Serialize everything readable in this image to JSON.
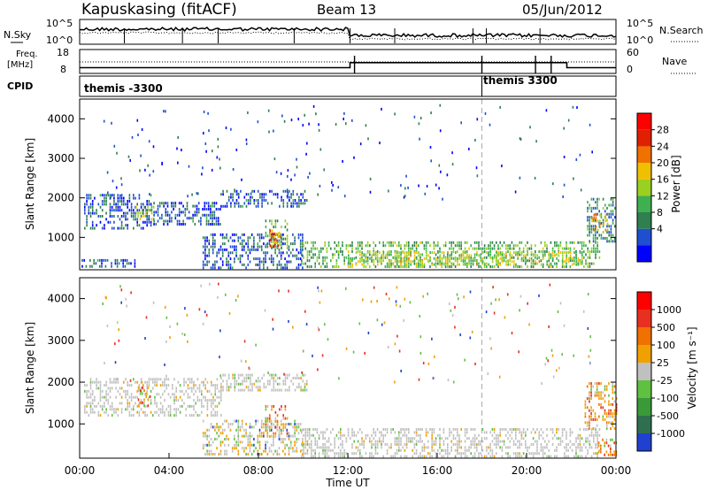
{
  "header": {
    "title": "Kapuskasing (fitACF)",
    "beam": "Beam 13",
    "date": "05/Jun/2012"
  },
  "top_panels": {
    "nsky_label": "N.Sky",
    "nsearch_label": "N.Search",
    "noise_ticks": [
      "10^5",
      "10^0"
    ],
    "freq_label_1": "Freq.",
    "freq_label_2": "[MHz]",
    "freq_ticks": [
      "18",
      "8"
    ],
    "nave_label": "Nave",
    "nave_ticks": [
      "60",
      "0"
    ],
    "cpid_label": "CPID",
    "cpid_segments": [
      {
        "label": "themis -3300",
        "start_hour": 0,
        "end_hour": 18
      },
      {
        "label": "themis 3300",
        "start_hour": 18,
        "end_hour": 24
      }
    ],
    "freq_series": [
      {
        "start_hour": 0,
        "end_hour": 12.1,
        "mhz": 10.2
      },
      {
        "start_hour": 12.1,
        "end_hour": 21.8,
        "mhz": 12.5
      },
      {
        "start_hour": 21.8,
        "end_hour": 24,
        "mhz": 10.2
      }
    ]
  },
  "chart_data": [
    {
      "type": "heatmap",
      "name": "power",
      "ylabel": "Slant Range [km]",
      "ylim": [
        180,
        4500
      ],
      "yticks": [
        "4000",
        "3000",
        "2000",
        "1000"
      ],
      "xlim_hours": [
        0,
        24
      ],
      "colorbar_label": "Power [dB]",
      "colorbar_ticks": [
        "28",
        "24",
        "20",
        "16",
        "12",
        "8",
        "4"
      ],
      "colorbar_colors": [
        "#0000ff",
        "#1f4fd0",
        "#2f7f4f",
        "#3fb050",
        "#9ad020",
        "#f0c000",
        "#f07000",
        "#e02000",
        "#ff0000"
      ],
      "echo_regions": [
        {
          "h0": 0.2,
          "h1": 3.2,
          "r0": 1200,
          "r1": 2100,
          "level": 1
        },
        {
          "h0": 2.5,
          "h1": 3.3,
          "r0": 1450,
          "r1": 1800,
          "level": 4
        },
        {
          "h0": 3.3,
          "h1": 6.3,
          "r0": 1300,
          "r1": 1900,
          "level": 1
        },
        {
          "h0": 6.3,
          "h1": 10.2,
          "r0": 1800,
          "r1": 2200,
          "level": 1
        },
        {
          "h0": 5.5,
          "h1": 10.0,
          "r0": 250,
          "r1": 1100,
          "level": 1
        },
        {
          "h0": 8.3,
          "h1": 9.3,
          "r0": 700,
          "r1": 1450,
          "level": 3
        },
        {
          "h0": 8.5,
          "h1": 9.0,
          "r0": 800,
          "r1": 1200,
          "level": 6
        },
        {
          "h0": 9.9,
          "h1": 23.3,
          "r0": 250,
          "r1": 900,
          "level": 3
        },
        {
          "h0": 12.0,
          "h1": 22.5,
          "r0": 300,
          "r1": 650,
          "level": 4
        },
        {
          "h0": 22.7,
          "h1": 24.0,
          "r0": 900,
          "r1": 2000,
          "level": 2
        },
        {
          "h0": 22.9,
          "h1": 23.6,
          "r0": 1200,
          "r1": 1600,
          "level": 5
        },
        {
          "h0": 0.0,
          "h1": 2.5,
          "r0": 250,
          "r1": 450,
          "level": 1
        }
      ]
    },
    {
      "type": "heatmap",
      "name": "velocity",
      "ylabel": "Slant Range [km]",
      "ylim": [
        180,
        4500
      ],
      "yticks": [
        "4000",
        "3000",
        "2000",
        "1000"
      ],
      "xlim_hours": [
        0,
        24
      ],
      "xticks": [
        "00:00",
        "04:00",
        "08:00",
        "12:00",
        "16:00",
        "20:00",
        "00:00"
      ],
      "xlabel": "Time UT",
      "colorbar_label": "Velocity [m s⁻¹]",
      "colorbar_ticks": [
        "1000",
        "500",
        "100",
        "25",
        "-25",
        "-100",
        "-500",
        "-1000"
      ],
      "colorbar_colors": [
        "#2040d0",
        "#2f6f4f",
        "#3a9a3a",
        "#60c040",
        "#c0c0c0",
        "#f0a000",
        "#f07000",
        "#e83020",
        "#ff0000"
      ],
      "echo_regions": [
        {
          "h0": 0.2,
          "h1": 6.3,
          "r0": 1200,
          "r1": 2100,
          "kind": "gray"
        },
        {
          "h0": 6.3,
          "h1": 10.2,
          "r0": 1800,
          "r1": 2200,
          "kind": "gray"
        },
        {
          "h0": 5.5,
          "h1": 10.0,
          "r0": 250,
          "r1": 1100,
          "kind": "mixed"
        },
        {
          "h0": 8.3,
          "h1": 9.3,
          "r0": 700,
          "r1": 1450,
          "kind": "hot"
        },
        {
          "h0": 9.9,
          "h1": 23.3,
          "r0": 250,
          "r1": 900,
          "kind": "gray"
        },
        {
          "h0": 22.6,
          "h1": 24.0,
          "r0": 900,
          "r1": 2000,
          "kind": "hot"
        },
        {
          "h0": 23.2,
          "h1": 24.0,
          "r0": 250,
          "r1": 650,
          "kind": "hot"
        },
        {
          "h0": 2.6,
          "h1": 3.2,
          "r0": 1400,
          "r1": 1900,
          "kind": "hot"
        }
      ]
    }
  ]
}
